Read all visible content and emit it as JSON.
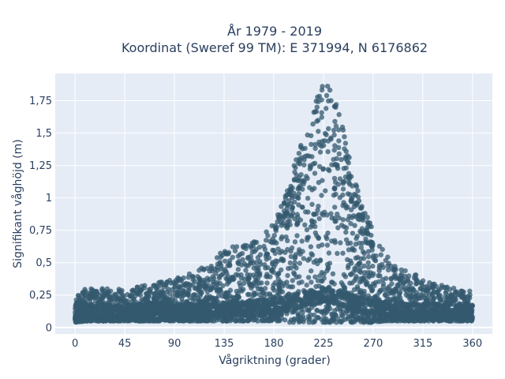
{
  "chart_data": {
    "type": "scatter",
    "title_lines": [
      "År 1979 - 2019",
      "Koordinat (Sweref 99 TM): E 371994, N 6176862"
    ],
    "xlabel": "Vågriktning (grader)",
    "ylabel": "Signifikant våghöjd (m)",
    "xlim": [
      -18,
      378
    ],
    "ylim": [
      -0.05,
      1.96
    ],
    "x_ticks": [
      0,
      45,
      90,
      135,
      180,
      225,
      270,
      315,
      360
    ],
    "x_tick_labels": [
      "0",
      "45",
      "90",
      "135",
      "180",
      "225",
      "270",
      "315",
      "360"
    ],
    "y_ticks": [
      0,
      0.25,
      0.5,
      0.75,
      1,
      1.25,
      1.5,
      1.75
    ],
    "y_tick_labels": [
      "0",
      "0,25",
      "0,5",
      "0,75",
      "1",
      "1,25",
      "1,5",
      "1,75"
    ],
    "grid": true,
    "marker_color": "#34596f",
    "background_color": "#e5ecf6",
    "envelope": {
      "x": [
        0,
        10,
        20,
        30,
        45,
        60,
        75,
        90,
        105,
        120,
        135,
        150,
        165,
        180,
        190,
        200,
        210,
        220,
        225,
        230,
        240,
        250,
        260,
        270,
        280,
        290,
        300,
        315,
        330,
        345,
        360
      ],
      "y_min": [
        0.04,
        0.05,
        0.05,
        0.05,
        0.05,
        0.05,
        0.05,
        0.05,
        0.05,
        0.05,
        0.05,
        0.05,
        0.05,
        0.05,
        0.04,
        0.04,
        0.04,
        0.04,
        0.04,
        0.04,
        0.04,
        0.04,
        0.04,
        0.04,
        0.05,
        0.05,
        0.05,
        0.05,
        0.05,
        0.05,
        0.05
      ],
      "y_max": [
        0.26,
        0.3,
        0.31,
        0.3,
        0.3,
        0.33,
        0.35,
        0.38,
        0.42,
        0.5,
        0.6,
        0.65,
        0.68,
        0.8,
        1.0,
        1.3,
        1.55,
        1.8,
        1.9,
        1.88,
        1.65,
        1.25,
        0.95,
        0.75,
        0.58,
        0.5,
        0.45,
        0.38,
        0.33,
        0.3,
        0.28
      ]
    }
  }
}
